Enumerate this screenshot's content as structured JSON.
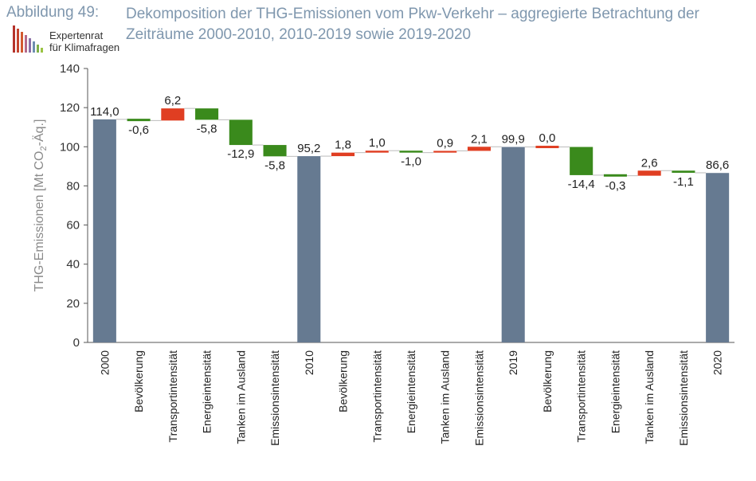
{
  "header": {
    "figure_label": "Abbildung 49:",
    "title": "Dekomposition der THG-Emissionen vom Pkw-Verkehr – aggregierte Betrachtung der Zeiträume 2000-2010, 2010-2019 sowie 2019-2020"
  },
  "logo": {
    "line1": "Expertenrat",
    "line2": "für Klimafragen",
    "bar_colors": [
      "#b5332b",
      "#c5442e",
      "#d25a30",
      "#b56b8a",
      "#8a6fa8",
      "#6f8fb0",
      "#7fb04a",
      "#9bc444"
    ]
  },
  "colors": {
    "total": "#667a91",
    "increase": "#e03e22",
    "decrease": "#3a8a1c",
    "connector": "#bbbbbb",
    "axis": "#555555"
  },
  "chart_data": {
    "type": "bar",
    "subtype": "waterfall",
    "ylabel_main": "THG-Emissionen [Mt CO",
    "ylabel_sub": "2",
    "ylabel_end": "-Äq.]",
    "ylim": [
      0,
      140
    ],
    "yticks": [
      0,
      20,
      40,
      60,
      80,
      100,
      120,
      140
    ],
    "items": [
      {
        "category": "2000",
        "type": "total",
        "value": 114.0,
        "label": "114,0"
      },
      {
        "category": "Bevölkerung",
        "type": "delta",
        "value": -0.6,
        "label": "-0,6"
      },
      {
        "category": "Transportintensität",
        "type": "delta",
        "value": 6.2,
        "label": "6,2"
      },
      {
        "category": "Energieintensität",
        "type": "delta",
        "value": -5.8,
        "label": "-5,8"
      },
      {
        "category": "Tanken im Ausland",
        "type": "delta",
        "value": -12.9,
        "label": "-12,9"
      },
      {
        "category": "Emissionsintensität",
        "type": "delta",
        "value": -5.8,
        "label": "-5,8"
      },
      {
        "category": "2010",
        "type": "total",
        "value": 95.2,
        "label": "95,2"
      },
      {
        "category": "Bevölkerung",
        "type": "delta",
        "value": 1.8,
        "label": "1,8"
      },
      {
        "category": "Transportintensität",
        "type": "delta",
        "value": 1.0,
        "label": "1,0"
      },
      {
        "category": "Energieintensität",
        "type": "delta",
        "value": -1.0,
        "label": "-1,0"
      },
      {
        "category": "Tanken im Ausland",
        "type": "delta",
        "value": 0.9,
        "label": "0,9"
      },
      {
        "category": "Emissionsintensität",
        "type": "delta",
        "value": 2.1,
        "label": "2,1"
      },
      {
        "category": "2019",
        "type": "total",
        "value": 99.9,
        "label": "99,9"
      },
      {
        "category": "Bevölkerung",
        "type": "delta",
        "value": 0.0,
        "label": "0,0"
      },
      {
        "category": "Transportintensität",
        "type": "delta",
        "value": -14.4,
        "label": "-14,4"
      },
      {
        "category": "Energieintensität",
        "type": "delta",
        "value": -0.3,
        "label": "-0,3"
      },
      {
        "category": "Tanken im Ausland",
        "type": "delta",
        "value": 2.6,
        "label": "2,6"
      },
      {
        "category": "Emissionsintensität",
        "type": "delta",
        "value": -1.1,
        "label": "-1,1"
      },
      {
        "category": "2020",
        "type": "total",
        "value": 86.6,
        "label": "86,6"
      }
    ]
  }
}
